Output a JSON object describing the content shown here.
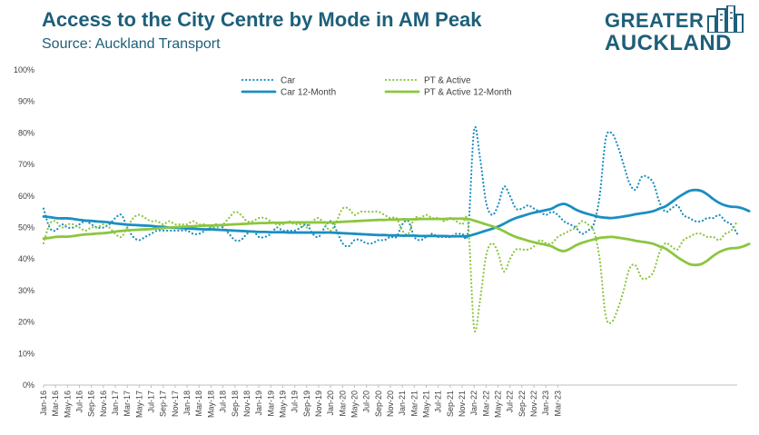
{
  "header": {
    "title": "Access to the City Centre by Mode in AM Peak",
    "subtitle": "Source: Auckland Transport"
  },
  "logo": {
    "line1": "GREATER",
    "line2": "AUCKLAND",
    "icon": "city-skyline-icon",
    "color": "#1e5f7a"
  },
  "chart_data": {
    "type": "line",
    "title": "Access to the City Centre by Mode in AM Peak",
    "subtitle": "Source: Auckland Transport",
    "xlabel": "",
    "ylabel": "",
    "ylim": [
      0,
      1
    ],
    "yticks": [
      0,
      0.1,
      0.2,
      0.3,
      0.4,
      0.5,
      0.6,
      0.7,
      0.8,
      0.9,
      1.0
    ],
    "ytick_labels": [
      "0%",
      "10%",
      "20%",
      "30%",
      "40%",
      "50%",
      "60%",
      "70%",
      "80%",
      "90%",
      "100%"
    ],
    "x_tick_labels": [
      "Jan-16",
      "Mar-16",
      "May-16",
      "Jul-16",
      "Sep-16",
      "Nov-16",
      "Jan-17",
      "Mar-17",
      "May-17",
      "Jul-17",
      "Sep-17",
      "Nov-17",
      "Jan-18",
      "Mar-18",
      "May-18",
      "Jul-18",
      "Sep-18",
      "Nov-18",
      "Jan-19",
      "Mar-19",
      "May-19",
      "Jul-19",
      "Sep-19",
      "Nov-19",
      "Jan-20",
      "Mar-20",
      "May-20",
      "Jul-20",
      "Sep-20",
      "Nov-20",
      "Jan-21",
      "Mar-21",
      "May-21",
      "Jul-21",
      "Sep-21",
      "Nov-21",
      "Jan-22",
      "Mar-22",
      "May-22",
      "Jul-22",
      "Sep-22",
      "Nov-22",
      "Jan-23",
      "Mar-23"
    ],
    "x_tick_every": 2,
    "x_start": "Jan-16",
    "x_end": "Mar-23",
    "grid": false,
    "legend": "top-center",
    "series": [
      {
        "name": "Car",
        "style": "dotted",
        "color": "#1b8ec2",
        "values": [
          0.56,
          0.5,
          0.49,
          0.51,
          0.5,
          0.5,
          0.51,
          0.52,
          0.51,
          0.5,
          0.5,
          0.51,
          0.53,
          0.54,
          0.5,
          0.47,
          0.46,
          0.47,
          0.48,
          0.49,
          0.49,
          0.49,
          0.49,
          0.49,
          0.49,
          0.48,
          0.48,
          0.49,
          0.5,
          0.51,
          0.5,
          0.48,
          0.46,
          0.46,
          0.48,
          0.49,
          0.47,
          0.47,
          0.48,
          0.5,
          0.49,
          0.49,
          0.49,
          0.5,
          0.51,
          0.48,
          0.47,
          0.5,
          0.52,
          0.49,
          0.45,
          0.44,
          0.46,
          0.46,
          0.45,
          0.45,
          0.46,
          0.46,
          0.47,
          0.47,
          0.51,
          0.52,
          0.47,
          0.46,
          0.47,
          0.48,
          0.47,
          0.47,
          0.47,
          0.48,
          0.48,
          0.49,
          0.81,
          0.72,
          0.58,
          0.54,
          0.57,
          0.63,
          0.6,
          0.56,
          0.56,
          0.57,
          0.56,
          0.55,
          0.54,
          0.55,
          0.54,
          0.52,
          0.51,
          0.5,
          0.48,
          0.49,
          0.51,
          0.6,
          0.78,
          0.8,
          0.76,
          0.7,
          0.64,
          0.62,
          0.66,
          0.66,
          0.64,
          0.58,
          0.55,
          0.56,
          0.57,
          0.54,
          0.53,
          0.52,
          0.52,
          0.53,
          0.53,
          0.54,
          0.52,
          0.51,
          0.48
        ]
      },
      {
        "name": "PT & Active",
        "style": "dotted",
        "color": "#8cc63f",
        "values": [
          0.45,
          0.51,
          0.52,
          0.5,
          0.51,
          0.51,
          0.5,
          0.49,
          0.5,
          0.5,
          0.51,
          0.5,
          0.48,
          0.47,
          0.5,
          0.53,
          0.54,
          0.53,
          0.52,
          0.52,
          0.51,
          0.52,
          0.51,
          0.51,
          0.51,
          0.52,
          0.51,
          0.51,
          0.5,
          0.5,
          0.51,
          0.53,
          0.55,
          0.54,
          0.52,
          0.52,
          0.53,
          0.53,
          0.52,
          0.51,
          0.51,
          0.52,
          0.51,
          0.51,
          0.5,
          0.52,
          0.53,
          0.51,
          0.49,
          0.52,
          0.56,
          0.56,
          0.54,
          0.55,
          0.55,
          0.55,
          0.55,
          0.54,
          0.53,
          0.53,
          0.49,
          0.48,
          0.53,
          0.53,
          0.54,
          0.53,
          0.53,
          0.52,
          0.53,
          0.52,
          0.51,
          0.51,
          0.18,
          0.27,
          0.41,
          0.45,
          0.42,
          0.36,
          0.4,
          0.43,
          0.43,
          0.43,
          0.44,
          0.46,
          0.45,
          0.45,
          0.47,
          0.48,
          0.49,
          0.5,
          0.52,
          0.51,
          0.49,
          0.4,
          0.22,
          0.2,
          0.24,
          0.3,
          0.37,
          0.38,
          0.34,
          0.34,
          0.36,
          0.42,
          0.45,
          0.44,
          0.43,
          0.46,
          0.47,
          0.48,
          0.48,
          0.47,
          0.47,
          0.46,
          0.48,
          0.49,
          0.52
        ]
      },
      {
        "name": "Car 12-Month",
        "style": "solid",
        "color": "#1b8ec2",
        "values": [
          0.535,
          0.533,
          0.53,
          0.529,
          0.529,
          0.527,
          0.524,
          0.522,
          0.521,
          0.519,
          0.518,
          0.516,
          0.513,
          0.511,
          0.509,
          0.508,
          0.507,
          0.506,
          0.505,
          0.503,
          0.502,
          0.5,
          0.499,
          0.498,
          0.497,
          0.496,
          0.495,
          0.494,
          0.494,
          0.493,
          0.492,
          0.491,
          0.49,
          0.489,
          0.488,
          0.487,
          0.486,
          0.486,
          0.485,
          0.485,
          0.485,
          0.484,
          0.484,
          0.484,
          0.484,
          0.484,
          0.484,
          0.484,
          0.484,
          0.483,
          0.482,
          0.481,
          0.48,
          0.479,
          0.478,
          0.477,
          0.476,
          0.476,
          0.475,
          0.475,
          0.474,
          0.474,
          0.474,
          0.473,
          0.473,
          0.473,
          0.473,
          0.473,
          0.472,
          0.472,
          0.472,
          0.473,
          0.478,
          0.484,
          0.49,
          0.496,
          0.503,
          0.512,
          0.522,
          0.53,
          0.536,
          0.542,
          0.547,
          0.551,
          0.555,
          0.56,
          0.57,
          0.575,
          0.568,
          0.557,
          0.549,
          0.543,
          0.538,
          0.533,
          0.531,
          0.53,
          0.532,
          0.535,
          0.538,
          0.542,
          0.545,
          0.548,
          0.552,
          0.56,
          0.567,
          0.58,
          0.594,
          0.606,
          0.616,
          0.619,
          0.616,
          0.605,
          0.59,
          0.578,
          0.57,
          0.566,
          0.565,
          0.56,
          0.552
        ]
      },
      {
        "name": "PT & Active 12-Month",
        "style": "solid",
        "color": "#8cc63f",
        "values": [
          0.465,
          0.467,
          0.47,
          0.471,
          0.471,
          0.473,
          0.476,
          0.478,
          0.479,
          0.481,
          0.482,
          0.484,
          0.487,
          0.489,
          0.491,
          0.492,
          0.493,
          0.494,
          0.495,
          0.497,
          0.498,
          0.5,
          0.501,
          0.502,
          0.503,
          0.504,
          0.505,
          0.506,
          0.506,
          0.507,
          0.508,
          0.509,
          0.51,
          0.511,
          0.512,
          0.513,
          0.514,
          0.514,
          0.515,
          0.515,
          0.515,
          0.516,
          0.516,
          0.516,
          0.516,
          0.516,
          0.516,
          0.516,
          0.516,
          0.517,
          0.518,
          0.519,
          0.52,
          0.521,
          0.522,
          0.523,
          0.524,
          0.524,
          0.525,
          0.525,
          0.526,
          0.526,
          0.526,
          0.527,
          0.527,
          0.527,
          0.527,
          0.527,
          0.528,
          0.528,
          0.528,
          0.527,
          0.522,
          0.516,
          0.51,
          0.504,
          0.497,
          0.488,
          0.478,
          0.47,
          0.464,
          0.458,
          0.453,
          0.449,
          0.445,
          0.44,
          0.43,
          0.425,
          0.432,
          0.443,
          0.451,
          0.457,
          0.462,
          0.467,
          0.469,
          0.47,
          0.468,
          0.465,
          0.462,
          0.458,
          0.455,
          0.452,
          0.448,
          0.44,
          0.433,
          0.42,
          0.406,
          0.394,
          0.384,
          0.381,
          0.384,
          0.395,
          0.41,
          0.422,
          0.43,
          0.434,
          0.435,
          0.44,
          0.448
        ]
      }
    ]
  }
}
